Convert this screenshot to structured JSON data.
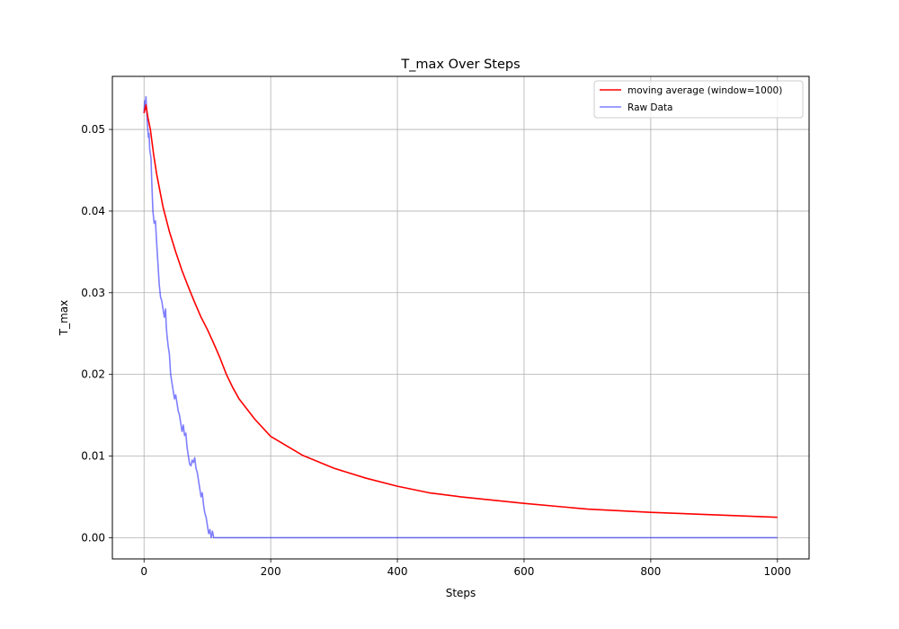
{
  "chart_data": {
    "type": "line",
    "title": "T_max Over Steps",
    "xlabel": "Steps",
    "ylabel": "T_max",
    "xlim": [
      -50,
      1050
    ],
    "ylim": [
      -0.0026,
      0.0565
    ],
    "xticks": [
      0,
      200,
      400,
      600,
      800,
      1000
    ],
    "xtick_labels": [
      "0",
      "200",
      "400",
      "600",
      "800",
      "1000"
    ],
    "yticks": [
      0.0,
      0.01,
      0.02,
      0.03,
      0.04,
      0.05
    ],
    "ytick_labels": [
      "0.00",
      "0.01",
      "0.02",
      "0.03",
      "0.04",
      "0.05"
    ],
    "grid": true,
    "legend_position": "top-right",
    "series": [
      {
        "name": "moving average (window=1000)",
        "color": "#ff0000",
        "alpha": 1.0,
        "x": [
          0,
          3,
          6,
          10,
          15,
          20,
          30,
          40,
          50,
          60,
          70,
          80,
          90,
          100,
          110,
          120,
          130,
          140,
          150,
          175,
          200,
          250,
          300,
          350,
          400,
          450,
          500,
          600,
          700,
          800,
          900,
          1000
        ],
        "y": [
          0.052,
          0.053,
          0.0515,
          0.05,
          0.047,
          0.0445,
          0.0405,
          0.0375,
          0.035,
          0.0327,
          0.0307,
          0.0288,
          0.027,
          0.0255,
          0.0238,
          0.022,
          0.02,
          0.0184,
          0.017,
          0.0145,
          0.0124,
          0.0101,
          0.0085,
          0.0073,
          0.0063,
          0.0055,
          0.005,
          0.0042,
          0.0035,
          0.0031,
          0.0028,
          0.0025
        ]
      },
      {
        "name": "Raw Data",
        "color": "#0000ff",
        "alpha": 0.5,
        "x": [
          0,
          1,
          2,
          3,
          4,
          5,
          6,
          7,
          8,
          9,
          10,
          11,
          12,
          14,
          16,
          18,
          20,
          22,
          24,
          26,
          28,
          30,
          32,
          34,
          35,
          36,
          38,
          40,
          42,
          44,
          46,
          48,
          50,
          52,
          54,
          56,
          58,
          60,
          62,
          64,
          66,
          68,
          70,
          72,
          74,
          76,
          78,
          80,
          82,
          84,
          86,
          88,
          90,
          92,
          94,
          96,
          98,
          100,
          102,
          104,
          106,
          108,
          110,
          112,
          113,
          114,
          115,
          116,
          118,
          120,
          1000
        ],
        "y": [
          0.052,
          0.0535,
          0.053,
          0.054,
          0.0525,
          0.051,
          0.05,
          0.049,
          0.0495,
          0.0475,
          0.047,
          0.0465,
          0.044,
          0.04,
          0.0385,
          0.0388,
          0.036,
          0.0335,
          0.031,
          0.0295,
          0.029,
          0.028,
          0.027,
          0.028,
          0.026,
          0.025,
          0.0235,
          0.0225,
          0.02,
          0.019,
          0.018,
          0.017,
          0.0175,
          0.0165,
          0.0155,
          0.015,
          0.014,
          0.013,
          0.0138,
          0.0125,
          0.0128,
          0.011,
          0.01,
          0.009,
          0.0088,
          0.0095,
          0.0092,
          0.0098,
          0.0085,
          0.008,
          0.007,
          0.006,
          0.005,
          0.0055,
          0.004,
          0.003,
          0.0025,
          0.0015,
          0.0005,
          0.001,
          0.0,
          0.0008,
          0.0,
          0.0,
          0.0,
          0.0,
          0.0,
          0.0,
          0.0,
          0.0,
          0.0
        ]
      }
    ]
  }
}
